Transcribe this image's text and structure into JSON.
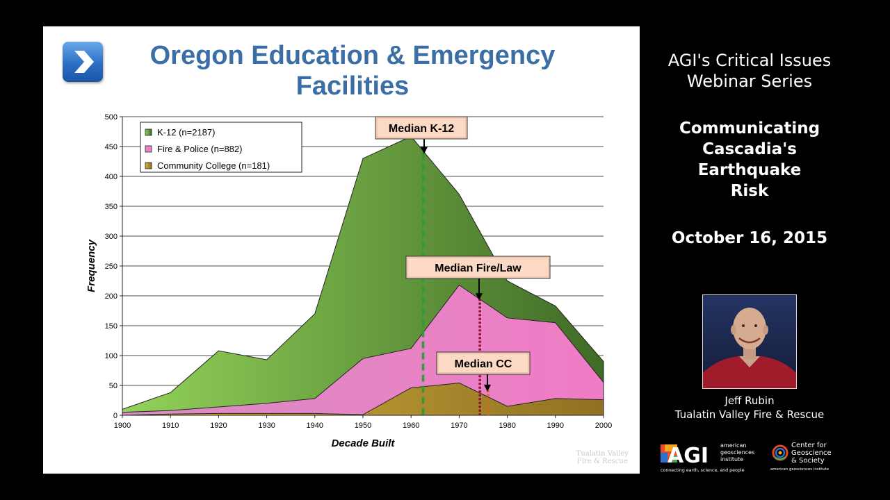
{
  "slide": {
    "title": "Oregon Education & Emergency Facilities",
    "watermark_line1": "Tualatin Valley",
    "watermark_line2": "Fire & Rescue"
  },
  "chart_data": {
    "type": "area",
    "x": [
      1900,
      1910,
      1920,
      1930,
      1940,
      1950,
      1960,
      1970,
      1980,
      1990,
      2000
    ],
    "series": [
      {
        "name": "K-12 (n=2187)",
        "color": "#6e9d3e",
        "values": [
          10,
          38,
          108,
          93,
          170,
          430,
          467,
          370,
          225,
          183,
          90
        ]
      },
      {
        "name": "Fire & Police (n=882)",
        "color": "#d27ab8",
        "values": [
          5,
          8,
          14,
          20,
          28,
          95,
          112,
          218,
          163,
          155,
          55
        ]
      },
      {
        "name": "Community College (n=181)",
        "color": "#c8a535",
        "values": [
          0,
          2,
          3,
          3,
          3,
          1,
          46,
          54,
          15,
          28,
          26
        ]
      }
    ],
    "xlabel": "Decade Built",
    "ylabel": "Frequency",
    "ylim": [
      0,
      500
    ],
    "yticks": [
      0,
      50,
      100,
      150,
      200,
      250,
      300,
      350,
      400,
      450,
      500
    ],
    "xticks": [
      "1900",
      "1910",
      "1920",
      "1930",
      "1940",
      "1950",
      "1960",
      "1970",
      "1980",
      "1990",
      "2000"
    ],
    "legend_placement": "top-left",
    "grid": true,
    "medians": [
      {
        "label": "Median K-12",
        "x": 1962.5,
        "color": "#2e9a3a",
        "style": "dashed"
      },
      {
        "label": "Median Fire/Law",
        "x": 1974.3,
        "color": "#8a1030",
        "style": "dotted"
      },
      {
        "label": "Median CC",
        "x": 1976,
        "color": "#d46a20",
        "style": "dotted"
      }
    ]
  },
  "sidebar": {
    "series_title_line1": "AGI's Critical Issues",
    "series_title_line2": "Webinar Series",
    "talk_title_lines": [
      "Communicating",
      "Cascadia's",
      "Earthquake",
      "Risk"
    ],
    "date": "October 16, 2015",
    "speaker_name": "Jeff Rubin",
    "speaker_org": "Tualatin Valley Fire & Rescue"
  },
  "logos": {
    "agi_mark": "AGI",
    "agi_name_lines": [
      "american",
      "geosciences",
      "institute"
    ],
    "agi_tagline": "connecting earth, science, and people",
    "cgs_lines": [
      "Center for",
      "Geoscience",
      "& Society"
    ],
    "cgs_tagline": "american geosciences institute"
  }
}
